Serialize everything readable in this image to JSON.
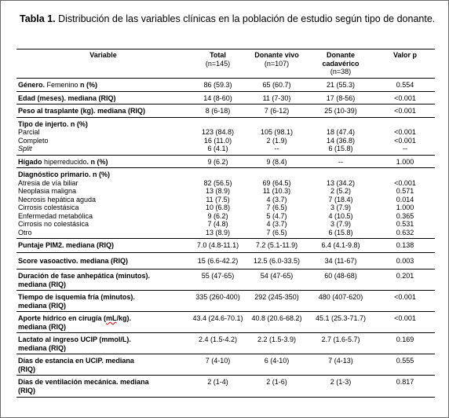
{
  "caption": {
    "label": "Tabla 1.",
    "text": " Distribución de las variables clínicas en la población de estudio según tipo de donante."
  },
  "table": {
    "headers": [
      {
        "label": "Variable",
        "sub": ""
      },
      {
        "label": "Total",
        "sub": "(n=145)"
      },
      {
        "label": "Donante vivo",
        "sub": "(n=107)"
      },
      {
        "label": "Donante cadavérico",
        "sub": "(n=38)"
      },
      {
        "label": "Valor p",
        "sub": ""
      }
    ],
    "rows": {
      "genero": {
        "label_bold": "Género.",
        "label_plain": " Femenino",
        "label_bold2": " n (%)",
        "total": "86 (59.3)",
        "vivo": "65 (60.7)",
        "cadaverico": "21 (55.3)",
        "p": "0.554"
      },
      "edad": {
        "label": "Edad (meses). mediana (RIQ)",
        "total": "14 (8-60)",
        "vivo": "11 (7-30)",
        "cadaverico": "17 (8-56)",
        "p": "<0.001"
      },
      "peso": {
        "label": "Peso al trasplante (kg). mediana (RIQ)",
        "total": "8 (6-18)",
        "vivo": "7 (6-12)",
        "cadaverico": "25 (10-39)",
        "p": "<0.001"
      },
      "tipo_injerto": {
        "label": "Tipo de injerto. n (%)"
      },
      "parcial": {
        "label": "Parcial",
        "total": "123 (84.8)",
        "vivo": "105 (98.1)",
        "cadaverico": "18 (47.4)",
        "p": "<0.001"
      },
      "completo": {
        "label": "Completo",
        "total": "16 (11.0)",
        "vivo": "2 (1.9)",
        "cadaverico": "14 (36.8)",
        "p": "<0.001"
      },
      "split": {
        "label": "Split",
        "total": "6 (4.1)",
        "vivo": "--",
        "cadaverico": "6 (15.8)",
        "p": "--"
      },
      "higado": {
        "label_bold": "Hígado",
        "label_plain": " hiperreducido",
        "label_bold2": ". n (%)",
        "total": "9 (6.2)",
        "vivo": "9 (8.4)",
        "cadaverico": "--",
        "p": "1.000"
      },
      "diagnostico": {
        "label": "Diagnóstico primario. n (%)"
      },
      "atresia": {
        "label": "Atresia de vía biliar",
        "total": "82 (56.5)",
        "vivo": "69 (64.5)",
        "cadaverico": "13 (34.2)",
        "p": "<0.001"
      },
      "neoplasia": {
        "label": "Neoplasia maligna",
        "total": "13 (8.9)",
        "vivo": "11 (10.3)",
        "cadaverico": "2 (5.2)",
        "p": "0.571"
      },
      "necrosis": {
        "label": "Necrosis hepática aguda",
        "total": "11 (7.5)",
        "vivo": "4 (3.7)",
        "cadaverico": "7 (18.4)",
        "p": "0.014"
      },
      "cirrosis_col": {
        "label": "Cirrosis colestásica",
        "total": "10 (6.8)",
        "vivo": "7 (6.5)",
        "cadaverico": "3 (7.9)",
        "p": "1.000"
      },
      "metabolica": {
        "label": "Enfermedad metabólica",
        "total": "9 (6.2)",
        "vivo": "5 (4.7)",
        "cadaverico": "4 (10.5)",
        "p": "0.365"
      },
      "cirrosis_nocol": {
        "label": "Cirrosis no colestásica",
        "total": "7 (4.8)",
        "vivo": "4 (3.7)",
        "cadaverico": "3 (7.9)",
        "p": "0.531"
      },
      "otro": {
        "label": "Otro",
        "total": "13 (8.9)",
        "vivo": "7 (6.5)",
        "cadaverico": "6 (15.8)",
        "p": "0.632"
      },
      "pim2": {
        "label": "Puntaje PIM2. mediana (RIQ)",
        "total": "7.0 (4.8-11.1)",
        "vivo": "7.2 (5.1-11.9)",
        "cadaverico": "6.4 (4.1-9.8)",
        "p": "0.138"
      },
      "vasoactivo": {
        "label": "Score vasoactivo. mediana (RIQ)",
        "total": "15 (6.6-42.2)",
        "vivo": "12.5 (6.0-33.5)",
        "cadaverico": "34 (11-67)",
        "p": "0.003"
      },
      "anhepatica": {
        "label_1": "Duración de fase anhepática (minutos).",
        "label_2": "mediana (RIQ)",
        "total": "55 (47-65)",
        "vivo": "54 (47-65)",
        "cadaverico": "60 (48-68)",
        "p": "0.201"
      },
      "isquemia": {
        "label_1": "Tiempo de isquemia fría (minutos).",
        "label_2": "mediana (RIQ)",
        "total": "335 (260-400)",
        "vivo": "292 (245-350)",
        "cadaverico": "480 (407-620)",
        "p": "<0.001"
      },
      "hidrico": {
        "label_1a": "Aporte hídrico en cirugía (",
        "label_1b": "mL",
        "label_1c": "/kg).",
        "label_2": "mediana (RIQ)",
        "total": "43.4 (24.6-70.1)",
        "vivo": "40.8 (20.6-68.2)",
        "cadaverico": "45.1 (25.3-71.7)",
        "p": "<0.001"
      },
      "lactato": {
        "label_1": "Lactato al ingreso UCIP (mmol/L).",
        "label_2": "mediana (RIQ)",
        "total": "2.4 (1.5-4.2)",
        "vivo": "2.2 (1.5-3.9)",
        "cadaverico": "2.7 (1.6-5.7)",
        "p": "0.169"
      },
      "estancia": {
        "label_1": "Días de estancia en UCIP. mediana",
        "label_2": "(RIQ)",
        "total": "7 (4-10)",
        "vivo": "6 (4-10)",
        "cadaverico": "7 (4-13)",
        "p": "0.555"
      },
      "ventilacion": {
        "label_1": "Días de ventilación mecánica. mediana",
        "label_2": "(RIQ)",
        "total": "2 (1-4)",
        "vivo": "2 (1-6)",
        "cadaverico": "2 (1-3)",
        "p": "0.817"
      }
    }
  }
}
